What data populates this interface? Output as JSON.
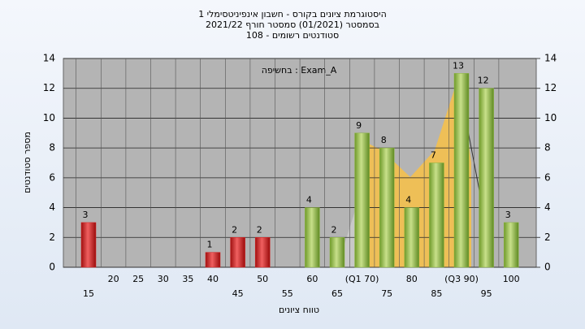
{
  "chart_data": {
    "type": "bar",
    "title": [
      "היסטוגרמת ציונים בקורס - חשבון אינפיניטסימלי 1",
      "בסמסטר  (01/2021)  סמסטר חורף 2021/22",
      "סטודנטים רשומים - 108"
    ],
    "annotation": "בחשיפה : Exam_A",
    "x_label": "טווח ציונים",
    "y_label": "מספר סטודנטים",
    "categories": [
      "15",
      "20",
      "25",
      "30",
      "35",
      "40",
      "45",
      "50",
      "55",
      "60",
      "65",
      "(Q1 70)",
      "75",
      "80",
      "85",
      "(Q3 90)",
      "95",
      "100"
    ],
    "values": [
      3,
      0,
      0,
      0,
      0,
      1,
      2,
      2,
      0,
      4,
      2,
      9,
      8,
      4,
      7,
      13,
      12,
      3
    ],
    "bar_colors": [
      "#d42020",
      "#d42020",
      "#d42020",
      "#d42020",
      "#d42020",
      "#d42020",
      "#d42020",
      "#d42020",
      "#d42020",
      "#8ab43c",
      "#8ab43c",
      "#8ab43c",
      "#8ab43c",
      "#8ab43c",
      "#8ab43c",
      "#8ab43c",
      "#8ab43c",
      "#8ab43c"
    ],
    "ylim": [
      0,
      14
    ],
    "yticks": [
      0,
      2,
      4,
      6,
      8,
      10,
      12,
      14
    ],
    "y2ticks": [
      0,
      2,
      4,
      6,
      8,
      10,
      12,
      14
    ],
    "grid": true
  }
}
